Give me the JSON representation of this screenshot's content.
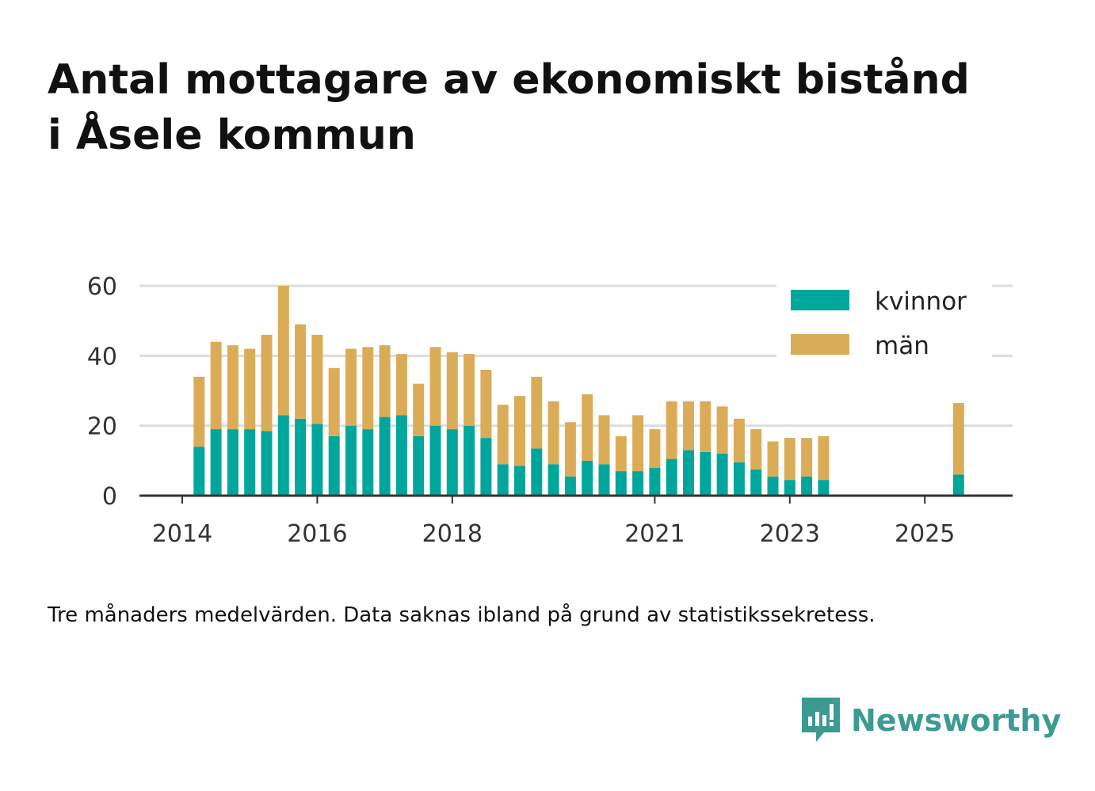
{
  "title_lines": [
    "Antal mottagare av ekonomiskt bistånd",
    "i Åsele kommun"
  ],
  "footnote": "Tre månaders medelvärden. Data saknas ibland på grund av statistikssekretess.",
  "brand": {
    "name": "Newsworthy",
    "icon": "newsworthy-logo-icon",
    "color": "#3d9a93"
  },
  "chart_data": {
    "type": "bar",
    "stacked": true,
    "title": "Antal mottagare av ekonomiskt bistånd i Åsele kommun",
    "xlabel": "",
    "ylabel": "",
    "ylim": [
      0,
      60
    ],
    "yticks": [
      0,
      20,
      40,
      60
    ],
    "xticks": [
      2014,
      2016,
      2018,
      2021,
      2023,
      2025
    ],
    "grid": "horizontal",
    "legend_position": "top-right",
    "x": [
      2014.25,
      2014.5,
      2014.75,
      2015.0,
      2015.25,
      2015.5,
      2015.75,
      2016.0,
      2016.25,
      2016.5,
      2016.75,
      2017.0,
      2017.25,
      2017.5,
      2017.75,
      2018.0,
      2018.25,
      2018.5,
      2018.75,
      2019.0,
      2019.25,
      2019.5,
      2019.75,
      2020.0,
      2020.25,
      2020.5,
      2020.75,
      2021.0,
      2021.25,
      2021.5,
      2021.75,
      2022.0,
      2022.25,
      2022.5,
      2022.75,
      2023.0,
      2023.25,
      2023.5,
      2025.5
    ],
    "series": [
      {
        "name": "kvinnor",
        "color": "#00a69c",
        "values": [
          14,
          19,
          19,
          19,
          18.5,
          23,
          22,
          20.5,
          17,
          20,
          19,
          22.5,
          23,
          17,
          20,
          19,
          20,
          16.5,
          9,
          8.5,
          13.5,
          9,
          5.5,
          10,
          9,
          7,
          7,
          8,
          10.5,
          13,
          12.5,
          12,
          9.5,
          7.5,
          5.5,
          4.5,
          5.5,
          4.5,
          6
        ]
      },
      {
        "name": "män",
        "color": "#dbac58",
        "values": [
          20,
          25,
          24,
          23,
          27.5,
          37,
          27,
          25.5,
          19.5,
          22,
          23.5,
          20.5,
          17.5,
          15,
          22.5,
          22,
          20.5,
          19.5,
          17,
          20,
          20.5,
          18,
          15.5,
          19,
          14,
          10,
          16,
          11,
          16.5,
          14,
          14.5,
          13.5,
          12.5,
          11.5,
          10,
          12,
          11,
          12.5,
          20.5
        ]
      }
    ]
  }
}
